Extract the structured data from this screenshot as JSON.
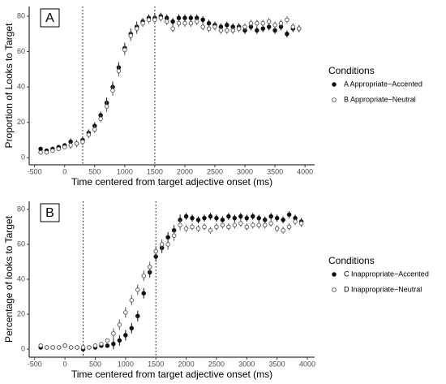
{
  "chart_data": [
    {
      "type": "scatter",
      "panel_label": "A",
      "xlabel": "Time centered from target adjective onset (ms)",
      "ylabel": "Proportion of Looks to Target",
      "legend_title": "Conditions",
      "x": [
        -400,
        -300,
        -200,
        -100,
        0,
        100,
        200,
        300,
        400,
        500,
        600,
        700,
        800,
        900,
        1000,
        1100,
        1200,
        1300,
        1400,
        1500,
        1600,
        1700,
        1800,
        1900,
        2000,
        2100,
        2200,
        2300,
        2400,
        2500,
        2600,
        2700,
        2800,
        2900,
        3000,
        3100,
        3200,
        3300,
        3400,
        3500,
        3600,
        3700,
        3800,
        3900
      ],
      "series": [
        {
          "name": "A Appropriate−Accented",
          "color": "#111111",
          "marker": "filled",
          "values": [
            5,
            4,
            5,
            6,
            7,
            9,
            8,
            10,
            14,
            18,
            24,
            31,
            40,
            51,
            62,
            70,
            74,
            77,
            79,
            79,
            80,
            79,
            77,
            79,
            79,
            79,
            79,
            78,
            76,
            75,
            74,
            75,
            74,
            74,
            72,
            74,
            72,
            73,
            74,
            72,
            74,
            70,
            73,
            73
          ],
          "errors": [
            1,
            1,
            1,
            1,
            1,
            2,
            2,
            2,
            2,
            2,
            2,
            3,
            3,
            3,
            3,
            3,
            3,
            2,
            2,
            2,
            2,
            2,
            2,
            2,
            2,
            2,
            2,
            2,
            2,
            2,
            2,
            2,
            2,
            2,
            2,
            2,
            2,
            2,
            2,
            2,
            2,
            2,
            2,
            2
          ]
        },
        {
          "name": "B Appropriate−Neutral",
          "color": "#555555",
          "marker": "open",
          "values": [
            3,
            3,
            4,
            5,
            6,
            7,
            8,
            9,
            13,
            16,
            22,
            29,
            38,
            49,
            61,
            69,
            73,
            76,
            78,
            78,
            79,
            77,
            73,
            76,
            76,
            76,
            77,
            74,
            73,
            74,
            72,
            72,
            72,
            73,
            74,
            76,
            76,
            76,
            77,
            75,
            76,
            78,
            74,
            73
          ],
          "errors": [
            1,
            1,
            1,
            1,
            1,
            2,
            2,
            2,
            2,
            2,
            2,
            3,
            3,
            3,
            3,
            3,
            3,
            2,
            2,
            2,
            2,
            2,
            2,
            2,
            2,
            2,
            2,
            2,
            2,
            2,
            2,
            2,
            2,
            2,
            2,
            2,
            2,
            2,
            2,
            2,
            2,
            2,
            2,
            2
          ]
        }
      ],
      "vlines": [
        300,
        1500
      ],
      "xlim": [
        -590,
        4160
      ],
      "ylim": [
        -4,
        85.5
      ],
      "xticks": [
        -500,
        0,
        500,
        1000,
        1500,
        2000,
        2500,
        3000,
        3500,
        4000
      ],
      "yticks": [
        0,
        20,
        40,
        60,
        80
      ]
    },
    {
      "type": "scatter",
      "panel_label": "B",
      "xlabel": "Time centered from target adjective onset (ms)",
      "ylabel": "Percentage of looks to Target",
      "legend_title": "Conditions",
      "x": [
        -400,
        -300,
        -200,
        -100,
        0,
        100,
        200,
        300,
        400,
        500,
        600,
        700,
        800,
        900,
        1000,
        1100,
        1200,
        1300,
        1400,
        1500,
        1600,
        1700,
        1800,
        1900,
        2000,
        2100,
        2200,
        2300,
        2400,
        2500,
        2600,
        2700,
        2800,
        2900,
        3000,
        3100,
        3200,
        3300,
        3400,
        3500,
        3600,
        3700,
        3800,
        3900
      ],
      "series": [
        {
          "name": "C Inappropriate−Accented",
          "color": "#111111",
          "marker": "filled",
          "values": [
            1,
            1,
            1,
            1,
            2,
            1,
            1,
            0,
            1,
            1,
            2,
            2,
            3,
            5,
            8,
            12,
            19,
            32,
            44,
            53,
            58,
            64,
            68,
            74,
            76,
            75,
            74,
            75,
            76,
            75,
            74,
            76,
            75,
            76,
            75,
            76,
            75,
            74,
            76,
            75,
            74,
            77,
            75,
            73
          ],
          "errors": [
            1,
            1,
            1,
            1,
            1,
            1,
            1,
            1,
            1,
            1,
            1,
            1,
            3,
            3,
            3,
            3,
            3,
            3,
            3,
            3,
            3,
            3,
            3,
            3,
            2,
            2,
            2,
            2,
            2,
            2,
            2,
            2,
            2,
            2,
            2,
            2,
            2,
            2,
            2,
            2,
            2,
            2,
            2,
            2
          ]
        },
        {
          "name": "D Inappropriate−Neutral",
          "color": "#555555",
          "marker": "open",
          "values": [
            2,
            1,
            1,
            1,
            2,
            1,
            1,
            1,
            1,
            2,
            3,
            5,
            9,
            14,
            21,
            28,
            34,
            42,
            47,
            56,
            60,
            60,
            65,
            71,
            69,
            70,
            69,
            70,
            68,
            70,
            71,
            70,
            71,
            72,
            70,
            71,
            71,
            71,
            72,
            69,
            68,
            70,
            73,
            72
          ],
          "errors": [
            1,
            1,
            1,
            1,
            1,
            1,
            1,
            1,
            1,
            1,
            1,
            1,
            3,
            3,
            3,
            3,
            3,
            3,
            3,
            3,
            3,
            3,
            3,
            3,
            2,
            2,
            2,
            2,
            2,
            2,
            2,
            2,
            2,
            2,
            2,
            2,
            2,
            2,
            2,
            2,
            2,
            2,
            2,
            2
          ]
        }
      ],
      "vlines": [
        300,
        1500
      ],
      "xlim": [
        -590,
        4120
      ],
      "ylim": [
        -4.6,
        84.6
      ],
      "xticks": [
        -500,
        0,
        500,
        1000,
        1500,
        2000,
        2500,
        3000,
        3500,
        4000
      ],
      "yticks": [
        0,
        20,
        40,
        60,
        80
      ]
    }
  ]
}
